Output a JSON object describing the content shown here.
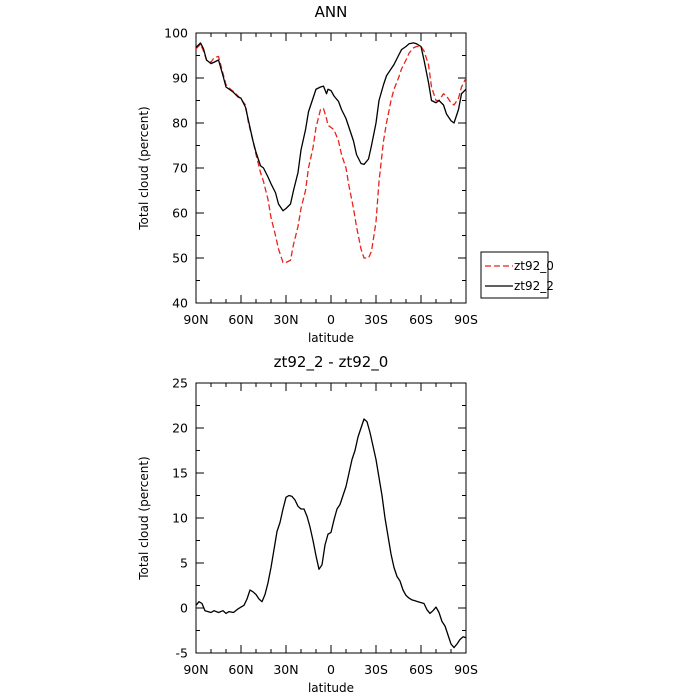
{
  "chart_data": [
    {
      "type": "line",
      "title": "ANN",
      "xlabel": "latitude",
      "ylabel": "Total cloud (percent)",
      "xlim": [
        90,
        -90
      ],
      "ylim": [
        40,
        100
      ],
      "xticks": [
        90,
        60,
        30,
        0,
        -30,
        -60,
        -90
      ],
      "xtick_labels": [
        "90N",
        "60N",
        "30N",
        "0",
        "30S",
        "60S",
        "90S"
      ],
      "yticks": [
        40,
        50,
        60,
        70,
        80,
        90,
        100
      ],
      "ytick_labels": [
        "40",
        "50",
        "60",
        "70",
        "80",
        "90",
        "100"
      ],
      "legend_position": "right",
      "series": [
        {
          "name": "zt92_0",
          "color": "#e8231b",
          "dash": "dashed",
          "x": [
            90,
            87,
            85,
            83,
            80,
            78,
            75,
            72,
            70,
            67,
            65,
            62,
            60,
            57,
            55,
            52,
            50,
            47,
            45,
            42,
            40,
            37,
            35,
            32,
            30,
            27,
            25,
            22,
            20,
            17,
            15,
            12,
            10,
            7,
            5,
            3,
            2,
            0,
            -2,
            -5,
            -7,
            -10,
            -12,
            -15,
            -17,
            -20,
            -22,
            -25,
            -27,
            -30,
            -32,
            -35,
            -37,
            -40,
            -42,
            -45,
            -47,
            -50,
            -52,
            -55,
            -57,
            -60,
            -62,
            -65,
            -67,
            -70,
            -72,
            -75,
            -77,
            -80,
            -82,
            -85,
            -87,
            -90
          ],
          "y": [
            96.5,
            97.5,
            96,
            94,
            93.5,
            94.5,
            94.8,
            91,
            88.5,
            87.5,
            87,
            86,
            85.3,
            84,
            80,
            76,
            73,
            69,
            67,
            63,
            59,
            55,
            52,
            49,
            49,
            49.5,
            53,
            57,
            61,
            65,
            70,
            74.5,
            79,
            83,
            83.2,
            81,
            79.5,
            79,
            78.5,
            76,
            73,
            70,
            66,
            61,
            57,
            52,
            50,
            50,
            51.5,
            58,
            67,
            76,
            80,
            85,
            87.5,
            90,
            92,
            94,
            95.5,
            96.7,
            97,
            97,
            96,
            93,
            88,
            85,
            85,
            86.5,
            86,
            84.5,
            84,
            85.5,
            88,
            90
          ]
        },
        {
          "name": "zt92_2",
          "color": "#000000",
          "dash": "solid",
          "x": [
            90,
            87,
            85,
            83,
            80,
            78,
            75,
            72,
            70,
            67,
            65,
            62,
            60,
            57,
            55,
            52,
            50,
            47,
            45,
            42,
            40,
            37,
            35,
            32,
            30,
            27,
            25,
            22,
            20,
            17,
            15,
            12,
            10,
            7,
            5,
            3,
            2,
            0,
            -2,
            -5,
            -7,
            -10,
            -12,
            -15,
            -17,
            -20,
            -22,
            -25,
            -27,
            -30,
            -32,
            -35,
            -37,
            -40,
            -42,
            -45,
            -47,
            -50,
            -52,
            -55,
            -57,
            -60,
            -62,
            -65,
            -67,
            -70,
            -72,
            -75,
            -77,
            -80,
            -82,
            -85,
            -87,
            -90
          ],
          "y": [
            96.8,
            97.8,
            96.5,
            94,
            93.2,
            93.5,
            94,
            90.5,
            88,
            87.3,
            86.8,
            85.8,
            85.5,
            83.5,
            80.5,
            76,
            73.5,
            70.5,
            70,
            68,
            66.5,
            64.5,
            62,
            60.5,
            61,
            62,
            65,
            69,
            74,
            78.5,
            82.5,
            85.5,
            87.5,
            88,
            88.2,
            86.5,
            87.5,
            87.2,
            86,
            84.8,
            83,
            81,
            79,
            76,
            73,
            71,
            70.8,
            72,
            75,
            80,
            85,
            88.5,
            90.5,
            92,
            93,
            95,
            96.3,
            97,
            97.6,
            97.8,
            97.6,
            97,
            94,
            89,
            85,
            84.5,
            85,
            84,
            82,
            80.5,
            80,
            83,
            86.5,
            87.5
          ]
        }
      ]
    },
    {
      "type": "line",
      "title": "zt92_2 - zt92_0",
      "xlabel": "latitude",
      "ylabel": "Total cloud (percent)",
      "xlim": [
        90,
        -90
      ],
      "ylim": [
        -5,
        25
      ],
      "xticks": [
        90,
        60,
        30,
        0,
        -30,
        -60,
        -90
      ],
      "xtick_labels": [
        "90N",
        "60N",
        "30N",
        "0",
        "30S",
        "60S",
        "90S"
      ],
      "yticks": [
        -5,
        0,
        5,
        10,
        15,
        20,
        25
      ],
      "ytick_labels": [
        "-5",
        "0",
        "5",
        "10",
        "15",
        "20",
        "25"
      ],
      "series": [
        {
          "color": "#000000",
          "dash": "solid",
          "x": [
            90,
            88,
            86,
            84,
            82,
            80,
            78,
            75,
            72,
            70,
            68,
            65,
            62,
            60,
            58,
            56,
            54,
            52,
            50,
            48,
            46,
            44,
            42,
            40,
            38,
            36,
            34,
            32,
            30,
            28,
            26,
            24,
            22,
            20,
            18,
            16,
            14,
            12,
            10,
            8,
            6,
            4,
            2,
            0,
            -2,
            -4,
            -6,
            -8,
            -10,
            -12,
            -14,
            -16,
            -18,
            -20,
            -22,
            -24,
            -26,
            -28,
            -30,
            -32,
            -34,
            -36,
            -38,
            -40,
            -42,
            -44,
            -46,
            -48,
            -50,
            -52,
            -54,
            -56,
            -58,
            -60,
            -62,
            -64,
            -66,
            -68,
            -70,
            -72,
            -74,
            -76,
            -78,
            -80,
            -82,
            -84,
            -86,
            -88,
            -90
          ],
          "y": [
            0.3,
            0.7,
            0.5,
            -0.3,
            -0.4,
            -0.5,
            -0.3,
            -0.5,
            -0.3,
            -0.6,
            -0.4,
            -0.5,
            -0.1,
            0.1,
            0.3,
            1,
            2,
            1.8,
            1.5,
            1,
            0.7,
            1.5,
            2.8,
            4.5,
            6.5,
            8.5,
            9.5,
            11,
            12.3,
            12.5,
            12.4,
            12,
            11.3,
            11,
            11,
            10.2,
            9,
            7.5,
            5.8,
            4.3,
            4.8,
            7,
            8.2,
            8.4,
            9.8,
            11,
            11.5,
            12.5,
            13.5,
            15,
            16.5,
            17.5,
            19,
            20,
            21,
            20.7,
            19.5,
            18,
            16.5,
            14.5,
            12.5,
            10,
            8,
            6,
            4.5,
            3.5,
            3,
            2,
            1.4,
            1.1,
            0.9,
            0.8,
            0.7,
            0.6,
            0.5,
            -0.2,
            -0.6,
            -0.3,
            0.1,
            -0.5,
            -1.5,
            -2,
            -3,
            -4,
            -4.4,
            -4,
            -3.5,
            -3.2,
            -3.3
          ]
        }
      ]
    }
  ]
}
